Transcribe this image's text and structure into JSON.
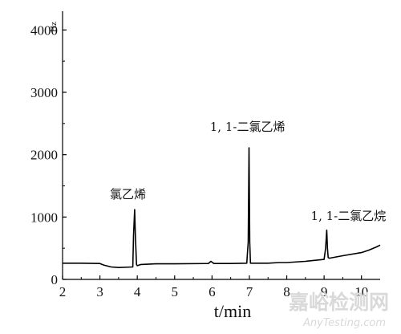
{
  "chart_data": {
    "type": "line",
    "xlabel": "t/min",
    "ylabel": "Hz",
    "xlim": [
      2,
      10.5
    ],
    "ylim": [
      0,
      4300
    ],
    "xticks": [
      2,
      3,
      4,
      5,
      6,
      7,
      8,
      9,
      10
    ],
    "yticks": [
      0,
      1000,
      2000,
      3000,
      4000
    ],
    "grid": false,
    "line_color": "#000000",
    "series": [
      {
        "x": [
          2.0,
          2.5,
          3.0,
          3.1,
          3.3,
          3.5,
          3.88,
          3.9,
          3.93,
          3.95,
          3.98,
          4.0,
          4.1,
          4.5,
          5.0,
          5.9,
          5.97,
          6.05,
          6.5,
          6.93,
          6.97,
          6.99,
          7.01,
          7.03,
          7.1,
          7.5,
          7.8,
          8.0,
          8.5,
          9.0,
          9.04,
          9.07,
          9.09,
          9.11,
          9.14,
          9.5,
          10.0,
          10.2,
          10.4,
          10.5
        ],
        "y": [
          260,
          260,
          255,
          230,
          200,
          190,
          200,
          700,
          1120,
          700,
          240,
          220,
          240,
          250,
          250,
          255,
          290,
          255,
          255,
          260,
          600,
          2110,
          600,
          260,
          260,
          260,
          270,
          270,
          290,
          320,
          500,
          790,
          500,
          350,
          340,
          380,
          430,
          470,
          520,
          550
        ]
      }
    ],
    "annotations": [
      {
        "text": "氯乙烯",
        "x": 3.75,
        "y": 1300
      },
      {
        "text": "1, 1-二氯乙烯",
        "x": 6.95,
        "y": 2380
      },
      {
        "text": "1, 1-二氯乙烷",
        "x": 9.65,
        "y": 950
      }
    ]
  },
  "watermark": {
    "cn": "嘉峪检测网",
    "en": "AnyTesting.com"
  }
}
